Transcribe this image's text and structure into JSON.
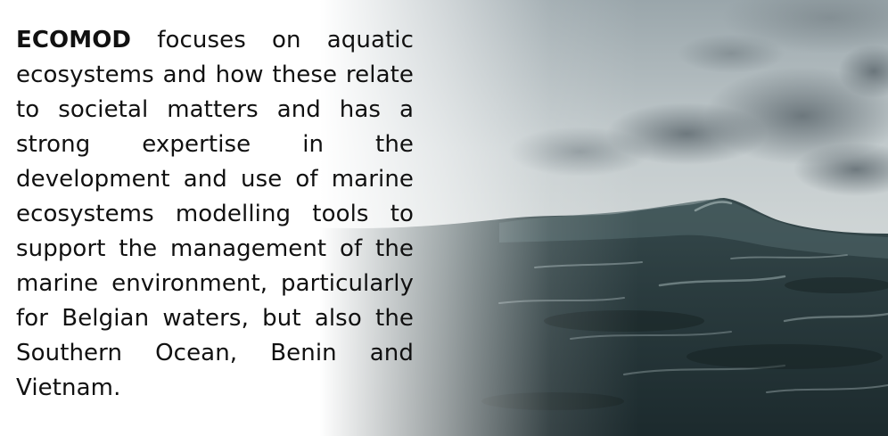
{
  "paragraph": {
    "brand": "ECOMOD",
    "text": " focuses on aquatic ecosystems and how these relate to societal matters and has a strong expertise in the development and use of marine ecosystems modelling tools to support the management of the marine environment, particularly for Belgian waters, but also the Southern Ocean, Benin and Vietnam."
  },
  "colors": {
    "text": "#111111",
    "sea_deep": "#1e2d30",
    "sea_mid": "#3f5457",
    "sky_grey": "#b7c0c4",
    "cloud_dark": "#6e7a80"
  }
}
